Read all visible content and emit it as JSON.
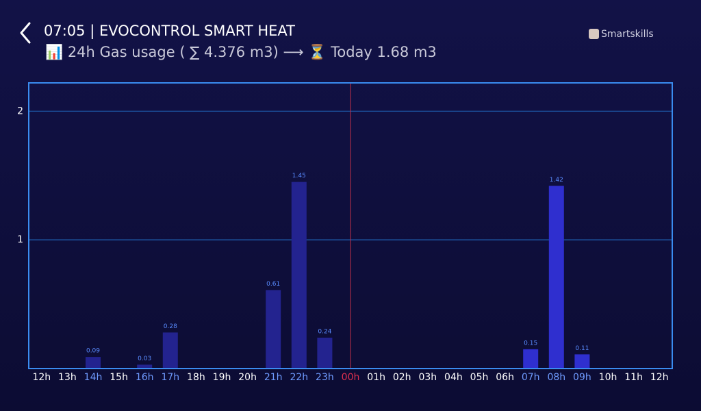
{
  "chart_data": {
    "type": "bar",
    "title": "07:05 | EVOCONTROL SMART HEAT",
    "subtitle": "📊 24h Gas usage ( ∑ 4.376 m3) ⟶ ⏳ Today 1.68 m3",
    "brand": "Smartskills",
    "categories": [
      "12h",
      "13h",
      "14h",
      "15h",
      "16h",
      "17h",
      "18h",
      "19h",
      "20h",
      "21h",
      "22h",
      "23h",
      "00h",
      "01h",
      "02h",
      "03h",
      "04h",
      "05h",
      "06h",
      "07h",
      "08h",
      "09h",
      "10h",
      "11h",
      "12h"
    ],
    "values": [
      null,
      null,
      0.09,
      null,
      0.03,
      0.28,
      null,
      null,
      null,
      0.61,
      1.45,
      0.24,
      null,
      null,
      null,
      null,
      null,
      null,
      null,
      0.15,
      1.42,
      0.11,
      null,
      null,
      null
    ],
    "colors": [
      null,
      null,
      "#23238f",
      null,
      "#23238f",
      "#23238f",
      null,
      null,
      null,
      "#23238f",
      "#23238f",
      "#23238f",
      null,
      null,
      null,
      null,
      null,
      null,
      null,
      "#2f2fcf",
      "#2f2fcf",
      "#2f2fcf",
      null,
      null,
      null
    ],
    "category_colors": [
      "#ffffff",
      "#ffffff",
      "#6f9bff",
      "#ffffff",
      "#6f9bff",
      "#6f9bff",
      "#ffffff",
      "#ffffff",
      "#ffffff",
      "#6f9bff",
      "#6f9bff",
      "#6f9bff",
      "#e0304f",
      "#ffffff",
      "#ffffff",
      "#ffffff",
      "#ffffff",
      "#ffffff",
      "#ffffff",
      "#6f9bff",
      "#6f9bff",
      "#6f9bff",
      "#ffffff",
      "#ffffff",
      "#ffffff"
    ],
    "value_label_color": "#5a8cff",
    "divider_index": 12,
    "divider_color": "#c0304a",
    "ylim": [
      0,
      2.22
    ],
    "yticks": [
      1,
      2
    ],
    "grid": true,
    "grid_color": "#1f5fb0",
    "frame_color": "#3a8cf0"
  }
}
